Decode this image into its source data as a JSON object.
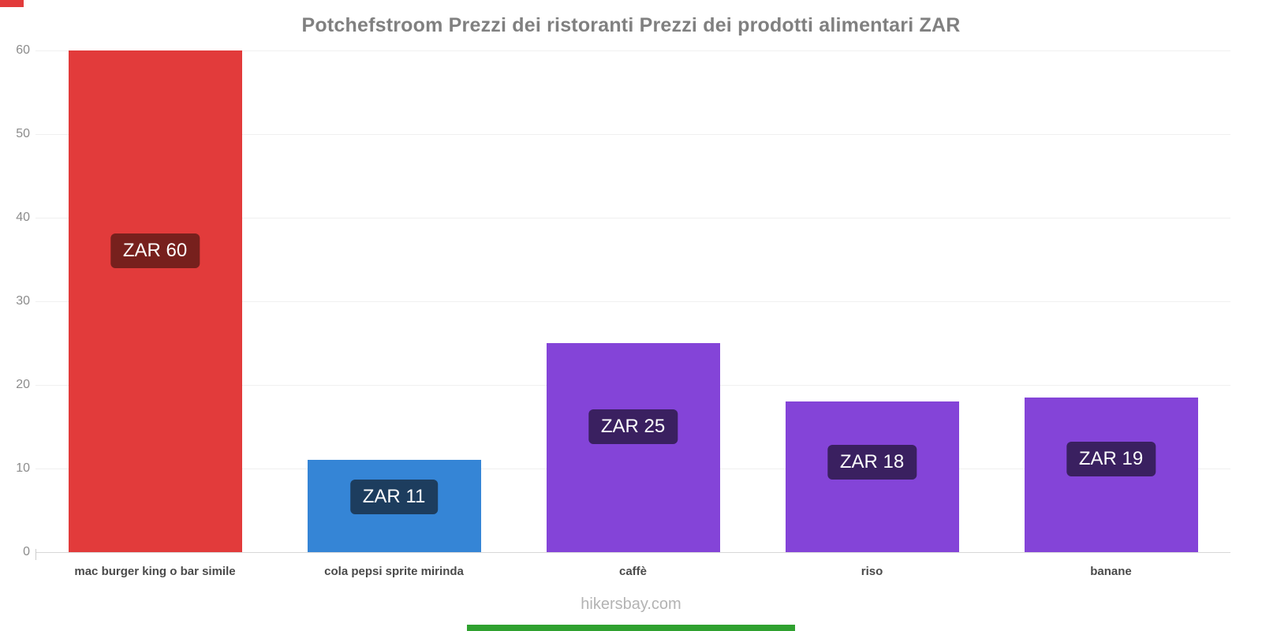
{
  "title": "Potchefstroom Prezzi dei ristoranti Prezzi dei prodotti alimentari ZAR",
  "footer": "hikersbay.com",
  "chart_data": {
    "type": "bar",
    "title": "Potchefstroom Prezzi dei ristoranti Prezzi dei prodotti alimentari ZAR",
    "categories": [
      "mac burger king o bar simile",
      "cola pepsi sprite mirinda",
      "caffè",
      "riso",
      "banane"
    ],
    "values": [
      60,
      11,
      25,
      18,
      18.5
    ],
    "value_labels": [
      "ZAR 60",
      "ZAR 11",
      "ZAR 25",
      "ZAR 18",
      "ZAR 19"
    ],
    "bar_colors": [
      "#e23b3b",
      "#3585d6",
      "#8444d8",
      "#8444d8",
      "#8444d8"
    ],
    "badge_colors": [
      "#77201d",
      "#1d3d5e",
      "#3a2060",
      "#3a2060",
      "#3a2060"
    ],
    "xlabel": "",
    "ylabel": "",
    "ylim": [
      0,
      60
    ],
    "yticks": [
      0,
      10,
      20,
      30,
      40,
      50,
      60
    ],
    "grid": true,
    "legend": false,
    "currency": "ZAR"
  },
  "decor": {
    "top_left_color": "#e23b3b",
    "bottom_strip_color": "#2fa12f"
  }
}
